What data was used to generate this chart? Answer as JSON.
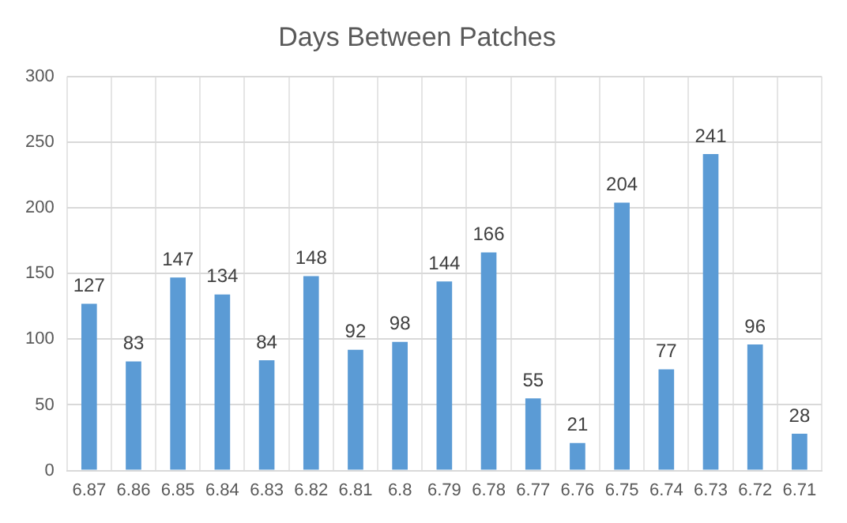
{
  "chart_data": {
    "type": "bar",
    "title": "Days Between Patches",
    "categories": [
      "6.87",
      "6.86",
      "6.85",
      "6.84",
      "6.83",
      "6.82",
      "6.81",
      "6.8",
      "6.79",
      "6.78",
      "6.77",
      "6.76",
      "6.75",
      "6.74",
      "6.73",
      "6.72",
      "6.71"
    ],
    "values": [
      127,
      83,
      147,
      134,
      84,
      148,
      92,
      98,
      144,
      166,
      55,
      21,
      204,
      77,
      241,
      96,
      28
    ],
    "color": "#5b9bd5",
    "ylim": [
      0,
      300
    ],
    "yticks": [
      0,
      50,
      100,
      150,
      200,
      250,
      300
    ],
    "grid": true,
    "data_labels": true
  }
}
